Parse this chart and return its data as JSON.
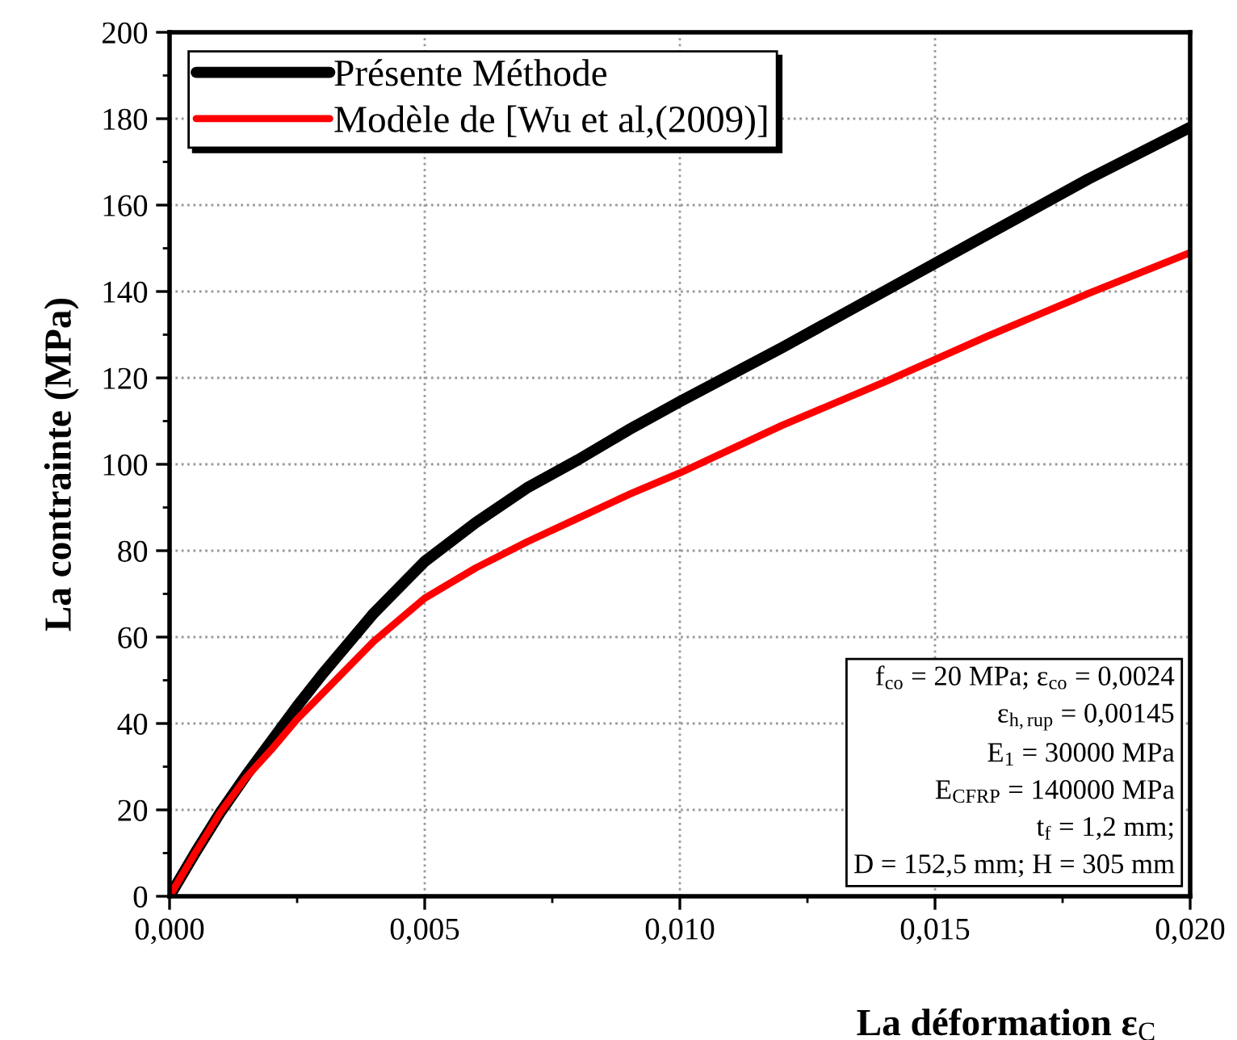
{
  "chart_data": {
    "type": "line",
    "xlabel": "La déformation ε$_{C}$",
    "ylabel": "La contrainte (MPa)",
    "xlim": [
      0,
      0.02
    ],
    "ylim": [
      0,
      200
    ],
    "xticks": [
      {
        "value": 0,
        "label": "0,000"
      },
      {
        "value": 0.005,
        "label": "0,005"
      },
      {
        "value": 0.01,
        "label": "0,010"
      },
      {
        "value": 0.015,
        "label": "0,015"
      },
      {
        "value": 0.02,
        "label": "0,020"
      }
    ],
    "yticks": [
      0,
      20,
      40,
      60,
      80,
      100,
      120,
      140,
      160,
      180,
      200
    ],
    "x": [
      0,
      0.0005,
      0.001,
      0.0015,
      0.002,
      0.0025,
      0.003,
      0.004,
      0.005,
      0.006,
      0.007,
      0.008,
      0.009,
      0.01,
      0.012,
      0.014,
      0.016,
      0.018,
      0.02
    ],
    "series": [
      {
        "name": "Présente Méthode",
        "color": "#000000",
        "values": [
          0,
          10,
          19.5,
          28,
          36,
          44,
          51.5,
          65.5,
          77.5,
          86.5,
          94.5,
          101,
          108,
          114.5,
          127,
          140,
          153,
          166,
          178
        ]
      },
      {
        "name": "Modèle de [Wu et al,(2009)]",
        "color": "#ff0000",
        "values": [
          0,
          10,
          19.5,
          27.5,
          34,
          41,
          47,
          59,
          69,
          76,
          82,
          87.5,
          93,
          98,
          109,
          119,
          129.5,
          139.5,
          149
        ]
      }
    ],
    "annotations": [
      "f$_{co}$ = 20 MPa; ε$_{co}$ = 0,0024",
      "ε$_{h,rup}$ = 0,00145",
      "E$_{1}$ = 30000 MPa",
      "E$_{CFRP}$ = 140000 MPa",
      "t$_{f}$ = 1,2 mm;",
      "D = 152,5 mm; H = 305 mm"
    ],
    "grid": true,
    "legend": "top left",
    "line_style": "solid",
    "marker": "none"
  }
}
